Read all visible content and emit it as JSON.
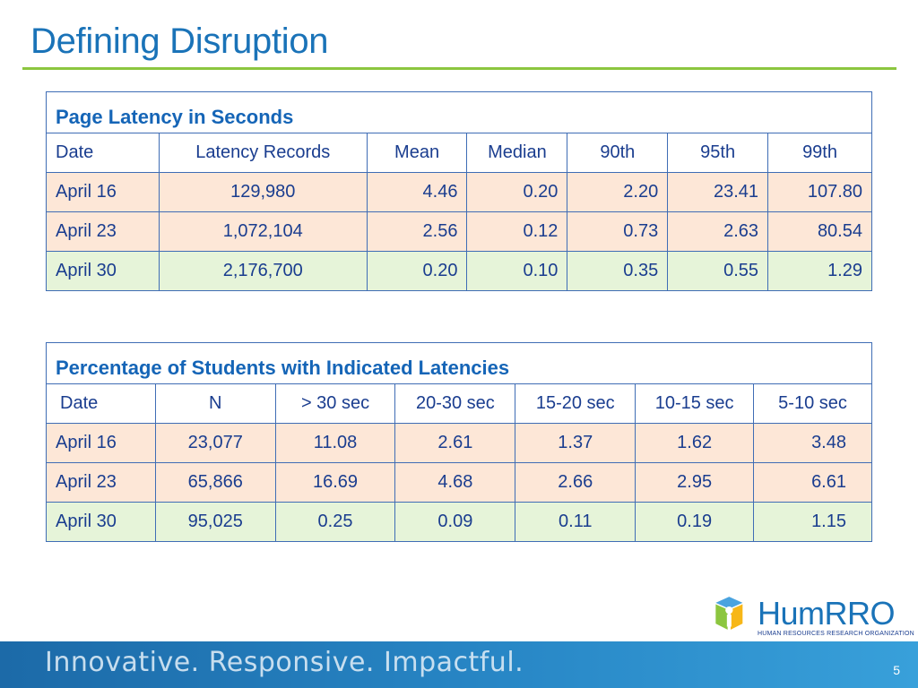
{
  "slide": {
    "title": "Defining Disruption",
    "page_number": "5",
    "tagline": "Innovative.  Responsive.  Impactful."
  },
  "logo": {
    "name": "HumRRO",
    "subtitle": "HUMAN RESOURCES RESEARCH ORGANIZATION",
    "colors": {
      "green": "#8cc63f",
      "yellow": "#f7b718",
      "blue": "#1a73b8"
    }
  },
  "colors": {
    "title": "#1a73b8",
    "rule": "#8cc63f",
    "peach_row": "#fde7d7",
    "green_row": "#e6f4d9",
    "border": "#3f6db5"
  },
  "table1": {
    "caption": "Page Latency in Seconds",
    "headers": [
      "Date",
      "Latency Records",
      "Mean",
      "Median",
      "90th",
      "95th",
      "99th"
    ],
    "rows": [
      [
        "April 16",
        "129,980",
        "4.46",
        "0.20",
        "2.20",
        "23.41",
        "107.80"
      ],
      [
        "April 23",
        "1,072,104",
        "2.56",
        "0.12",
        "0.73",
        "2.63",
        "80.54"
      ],
      [
        "April 30",
        "2,176,700",
        "0.20",
        "0.10",
        "0.35",
        "0.55",
        "1.29"
      ]
    ]
  },
  "table2": {
    "caption": "Percentage of Students with Indicated Latencies",
    "headers": [
      "Date",
      "N",
      "> 30 sec",
      "20-30 sec",
      "15-20 sec",
      "10-15 sec",
      "5-10 sec"
    ],
    "rows": [
      [
        "April 16",
        "23,077",
        "11.08",
        "2.61",
        "1.37",
        "1.62",
        "3.48"
      ],
      [
        "April 23",
        "65,866",
        "16.69",
        "4.68",
        "2.66",
        "2.95",
        "6.61"
      ],
      [
        "April 30",
        "95,025",
        "0.25",
        "0.09",
        "0.11",
        "0.19",
        "1.15"
      ]
    ]
  }
}
